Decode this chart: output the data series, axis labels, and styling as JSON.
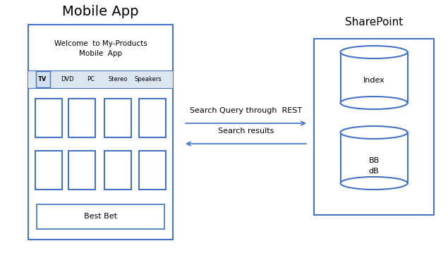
{
  "bg_color": "#ffffff",
  "title_mobile": "Mobile App",
  "title_sharepoint": "SharePoint",
  "welcome_text1": "Welcome  to My-Products",
  "welcome_text2": "Mobile  App",
  "nav_items": [
    "TV",
    "DVD",
    "PC",
    "Stereo",
    "Speakers"
  ],
  "best_bet_text": "Best Bet",
  "arrow1_text": "Search Query through  REST",
  "arrow2_text": "Search results",
  "index_text": "Index",
  "bb_text1": "BB",
  "bb_text2": "dB",
  "border_color": "#4472c4",
  "nav_bg": "#dce6f1",
  "tv_bg": "#cfe0f0"
}
